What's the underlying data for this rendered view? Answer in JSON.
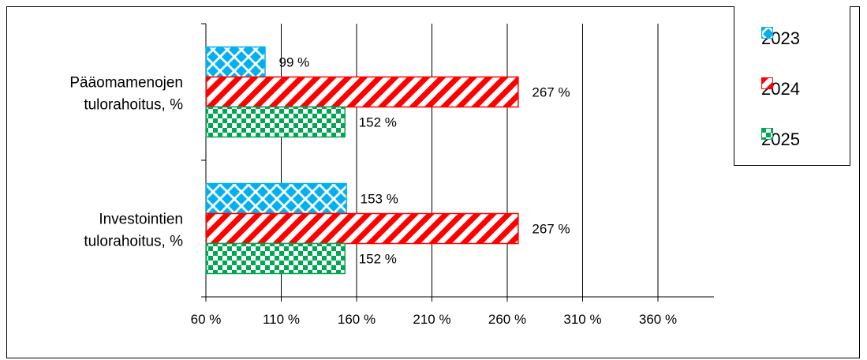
{
  "chart_data": {
    "type": "bar",
    "orientation": "horizontal",
    "categories": [
      "Pääomamenojen tulorahoitus, %",
      "Investointien tulorahoitus, %"
    ],
    "category_lines": [
      [
        "Pääomamenojen",
        "tulorahoitus, %"
      ],
      [
        "Investointien",
        "tulorahoitus, %"
      ]
    ],
    "series": [
      {
        "name": "2023",
        "values": [
          99,
          153
        ],
        "labels": [
          "99 %",
          "153 %"
        ],
        "color": "#00B0F0",
        "pattern": "diamonds"
      },
      {
        "name": "2024",
        "values": [
          267,
          267
        ],
        "labels": [
          "267 %",
          "267 %"
        ],
        "color": "#FF0000",
        "pattern": "diagonal-stripes"
      },
      {
        "name": "2025",
        "values": [
          152,
          152
        ],
        "labels": [
          "152 %",
          "152 %"
        ],
        "color": "#00A651",
        "pattern": "checkerboard"
      }
    ],
    "x_ticks": [
      60,
      110,
      160,
      210,
      260,
      310,
      360
    ],
    "x_tick_labels": [
      "60 %",
      "110 %",
      "160 %",
      "210 %",
      "260 %",
      "310 %",
      "360 %"
    ],
    "xlim": [
      60,
      396
    ],
    "grid": "vertical",
    "legend_position": "top-right"
  },
  "legend": {
    "items": [
      {
        "label": "2023"
      },
      {
        "label": "2024"
      },
      {
        "label": "2025"
      }
    ]
  }
}
